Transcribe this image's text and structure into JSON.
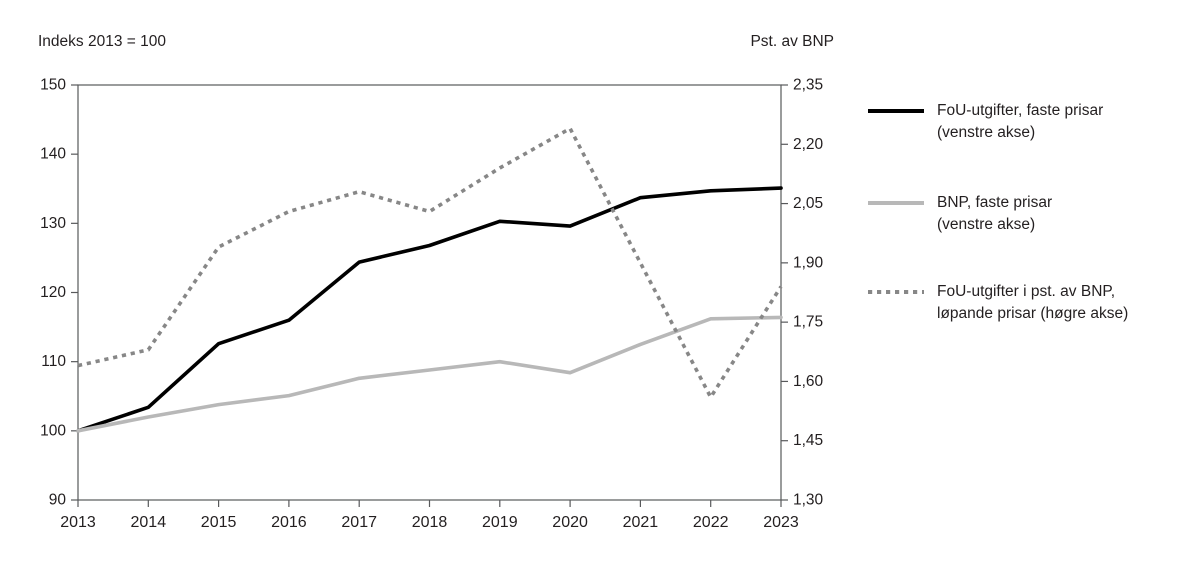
{
  "figure": {
    "left_axis_unit": "Indeks 2013 = 100",
    "right_axis_unit": "Pst. av BNP"
  },
  "legend": {
    "position": "right",
    "items": [
      {
        "swatch": "solid-black-line",
        "line1": "FoU-utgifter, faste prisar",
        "line2": "(venstre akse)"
      },
      {
        "swatch": "solid-gray-line",
        "line1": "BNP, faste prisar",
        "line2": "(venstre akse)"
      },
      {
        "swatch": "dotted-gray-line",
        "line1": "FoU-utgifter i pst. av BNP,",
        "line2": "løpande prisar (høgre akse)"
      }
    ]
  },
  "colors": {
    "fou_faste": "#000000",
    "bnp_faste": "#b8b8b8",
    "fou_pst_av_bnp": "#878787",
    "axis": "#58595b",
    "text": "#231f20",
    "background": "#ffffff"
  },
  "chart_data": {
    "type": "line",
    "title": "",
    "grid": false,
    "legend_position": "right",
    "x": [
      2013,
      2014,
      2015,
      2016,
      2017,
      2018,
      2019,
      2020,
      2021,
      2022,
      2023
    ],
    "x_tick_labels": [
      "2013",
      "2014",
      "2015",
      "2016",
      "2017",
      "2018",
      "2019",
      "2020",
      "2021",
      "2022",
      "2023"
    ],
    "left_axis": {
      "label": "Indeks 2013 = 100",
      "range": [
        90,
        150
      ],
      "ticks": [
        150,
        140,
        130,
        120,
        110,
        100,
        90
      ],
      "tick_labels": [
        "150",
        "140",
        "130",
        "120",
        "110",
        "100",
        "90"
      ]
    },
    "right_axis": {
      "label": "Pst. av BNP",
      "range": [
        1.3,
        2.35
      ],
      "ticks": [
        2.35,
        2.2,
        2.05,
        1.9,
        1.75,
        1.6,
        1.45,
        1.3
      ],
      "tick_labels": [
        "2,35",
        "2,20",
        "2,05",
        "1,90",
        "1,75",
        "1,60",
        "1,45",
        "1,30"
      ]
    },
    "series": [
      {
        "name": "FoU-utgifter, faste prisar (venstre akse)",
        "axis": "left",
        "color": "#000000",
        "dash": "solid",
        "values": [
          100,
          103.4,
          112.6,
          116.0,
          124.4,
          126.8,
          130.3,
          129.6,
          133.7,
          134.7,
          135.1
        ]
      },
      {
        "name": "BNP, faste prisar (venstre akse)",
        "axis": "left",
        "color": "#b8b8b8",
        "dash": "solid",
        "values": [
          100,
          102.0,
          103.8,
          105.1,
          107.6,
          108.8,
          110.0,
          108.4,
          112.5,
          116.2,
          116.4
        ]
      },
      {
        "name": "FoU-utgifter i pst. av BNP, løpande prisar (høgre akse)",
        "axis": "right",
        "color": "#878787",
        "dash": "dotted",
        "values": [
          1.64,
          1.68,
          1.94,
          2.03,
          2.08,
          2.03,
          2.14,
          2.24,
          1.9,
          1.56,
          1.84
        ]
      }
    ]
  }
}
